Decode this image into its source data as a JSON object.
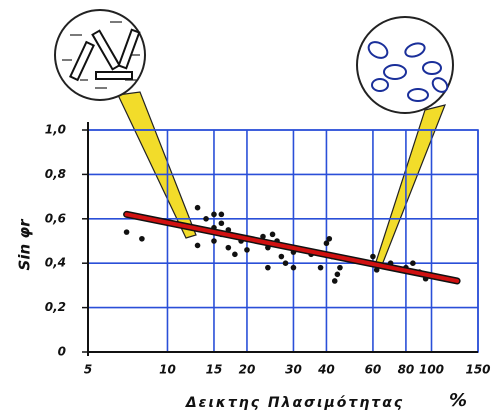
{
  "chart_data": {
    "type": "scatter",
    "x_label": "Δεικτης Πλασιμότητας",
    "x_unit": "%",
    "y_label": "Sin φr",
    "xlog": true,
    "grid": true,
    "xlim": [
      5,
      150
    ],
    "xticks": [
      5,
      10,
      15,
      20,
      30,
      40,
      60,
      80,
      100,
      150
    ],
    "ylim": [
      0,
      1.0
    ],
    "yticks": [
      {
        "value": 0,
        "label": "0"
      },
      {
        "value": 0.2,
        "label": "0,2"
      },
      {
        "value": 0.4,
        "label": "0,4"
      },
      {
        "value": 0.6,
        "label": "0,6"
      },
      {
        "value": 0.8,
        "label": "0,8"
      },
      {
        "value": 1.0,
        "label": "1,0"
      }
    ],
    "series": [
      {
        "color": "#111111",
        "x": [
          7,
          8,
          13,
          13,
          14,
          14,
          15,
          15,
          15,
          16,
          16,
          16,
          17,
          17,
          18,
          18,
          19,
          20,
          22,
          23,
          24,
          24,
          25,
          26,
          27,
          28,
          30,
          30,
          35,
          38,
          40,
          41,
          42,
          43,
          44,
          45,
          60,
          62,
          70,
          80,
          85,
          90,
          95
        ],
        "values": [
          0.54,
          0.51,
          0.65,
          0.48,
          0.55,
          0.6,
          0.62,
          0.5,
          0.56,
          0.53,
          0.58,
          0.62,
          0.55,
          0.47,
          0.52,
          0.44,
          0.5,
          0.46,
          0.5,
          0.52,
          0.38,
          0.47,
          0.53,
          0.5,
          0.43,
          0.4,
          0.38,
          0.45,
          0.44,
          0.38,
          0.49,
          0.51,
          0.43,
          0.32,
          0.35,
          0.38,
          0.43,
          0.37,
          0.4,
          0.38,
          0.4,
          0.36,
          0.33
        ]
      },
      {
        "type": "line",
        "color": "#d01010",
        "x": [
          7,
          125
        ],
        "values": [
          0.62,
          0.32
        ]
      }
    ]
  }
}
